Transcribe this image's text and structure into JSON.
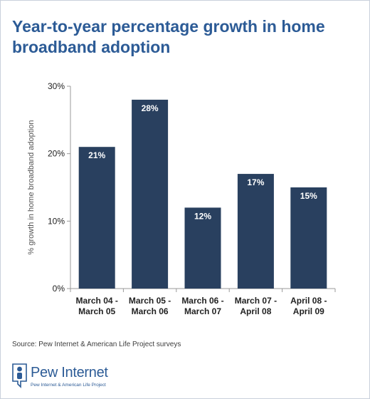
{
  "title": "Year-to-year percentage growth in home broadband adoption",
  "source": "Source: Pew Internet & American Life Project surveys",
  "logo": {
    "name": "Pew Internet",
    "tagline": "Pew Internet & American Life Project"
  },
  "colors": {
    "bar": "#29405f",
    "title": "#2c5b96",
    "axis": "#9a9a9a"
  },
  "chart_data": {
    "type": "bar",
    "title": "Year-to-year percentage growth in home broadband adoption",
    "xlabel": "",
    "ylabel": "% growth in home broadband adoption",
    "categories": [
      [
        "March 04 -",
        "March 05"
      ],
      [
        "March 05 -",
        "March 06"
      ],
      [
        "March 06 -",
        "March 07"
      ],
      [
        "March 07 -",
        "April 08"
      ],
      [
        "April 08 -",
        "April 09"
      ]
    ],
    "values": [
      21,
      28,
      12,
      17,
      15
    ],
    "data_labels": [
      "21%",
      "28%",
      "12%",
      "17%",
      "15%"
    ],
    "ylim": [
      0,
      30
    ],
    "yticks": [
      0,
      10,
      20,
      30
    ],
    "ytick_labels": [
      "0%",
      "10%",
      "20%",
      "30%"
    ],
    "grid": false,
    "legend": "none"
  }
}
